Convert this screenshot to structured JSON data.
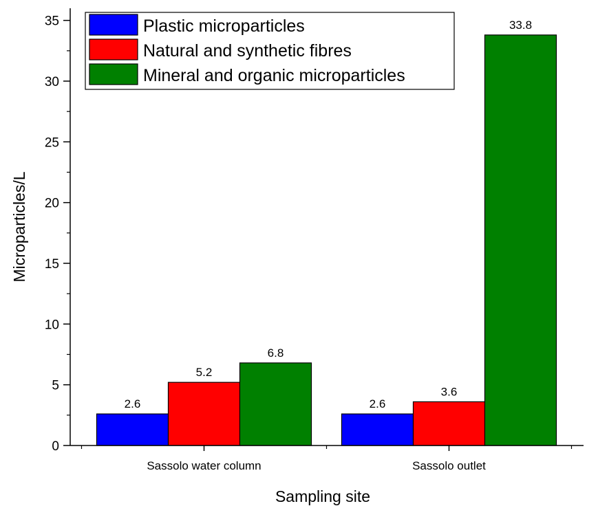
{
  "chart_data": {
    "type": "bar",
    "xlabel": "Sampling site",
    "ylabel": "Microparticles/L",
    "ylim": [
      0,
      36
    ],
    "yticks": [
      0,
      5,
      10,
      15,
      20,
      25,
      30,
      35
    ],
    "categories": [
      "Sassolo water column",
      "Sassolo outlet"
    ],
    "series": [
      {
        "name": "Plastic microparticles",
        "values": [
          2.6,
          2.6
        ],
        "labels": [
          "2.6",
          "2.6"
        ],
        "color": "#0000ff"
      },
      {
        "name": "Natural and synthetic fibres",
        "values": [
          5.2,
          3.6
        ],
        "labels": [
          "5.2",
          "3.6"
        ],
        "color": "#ff0000"
      },
      {
        "name": "Mineral and organic microparticles",
        "values": [
          6.8,
          33.8
        ],
        "labels": [
          "6.8",
          "33.8"
        ],
        "color": "#008000"
      }
    ],
    "legend_position": "top-left",
    "grid": false
  }
}
